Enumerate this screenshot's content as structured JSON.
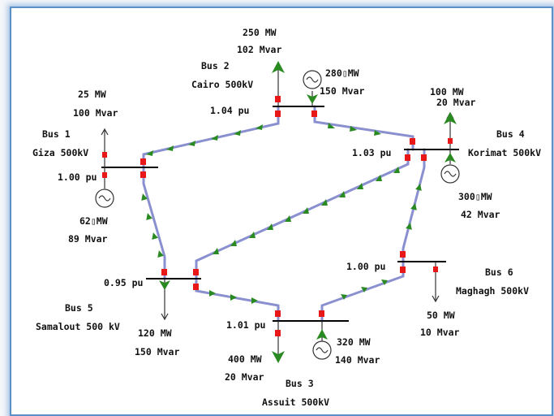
{
  "buses": [
    {
      "id": "bus1",
      "name": "Bus 1",
      "location": "Giza 500kV",
      "voltage": "1.00 pu"
    },
    {
      "id": "bus2",
      "name": "Bus 2",
      "location": "Cairo 500kV",
      "voltage": "1.04 pu"
    },
    {
      "id": "bus3",
      "name": "Bus 3",
      "location": "Assuit 500kV",
      "voltage": "1.01 pu"
    },
    {
      "id": "bus4",
      "name": "Bus 4",
      "location": "Korimat 500kV",
      "voltage": "1.03 pu"
    },
    {
      "id": "bus5",
      "name": "Bus 5",
      "location": "Samalout 500 kV",
      "voltage": "0.95 pu"
    },
    {
      "id": "bus6",
      "name": "Bus 6",
      "location": "Maghagh 500kV",
      "voltage": "1.00 pu"
    }
  ],
  "loads": [
    {
      "bus": "bus1",
      "mw": "25 MW",
      "mvar": "100 Mvar"
    },
    {
      "bus": "bus2",
      "mw": "250 MW",
      "mvar": "102 Mvar"
    },
    {
      "bus": "bus3",
      "mw": "400 MW",
      "mvar": "20 Mvar"
    },
    {
      "bus": "bus4",
      "mw": "100 MW",
      "mvar": "20 Mvar"
    },
    {
      "bus": "bus5",
      "mw": "120 MW",
      "mvar": "150 Mvar"
    },
    {
      "bus": "bus6",
      "mw": "50 MW",
      "mvar": "10 Mvar"
    }
  ],
  "generators": [
    {
      "bus": "bus1",
      "mw": "62▯MW",
      "mvar": "89 Mvar"
    },
    {
      "bus": "bus2",
      "mw": "280▯MW",
      "mvar": "150 Mvar"
    },
    {
      "bus": "bus3",
      "mw": "320 MW",
      "mvar": "140 Mvar"
    },
    {
      "bus": "bus4",
      "mw": "300▯MW",
      "mvar": "42 Mvar"
    }
  ],
  "lines": [
    {
      "from": "bus2",
      "to": "bus1"
    },
    {
      "from": "bus2",
      "to": "bus4"
    },
    {
      "from": "bus1",
      "to": "bus5"
    },
    {
      "from": "bus4",
      "to": "bus5"
    },
    {
      "from": "bus4",
      "to": "bus6"
    },
    {
      "from": "bus6",
      "to": "bus3"
    },
    {
      "from": "bus5",
      "to": "bus3"
    }
  ],
  "colors": {
    "line": "#8a8fcf",
    "line_dark": "#565b9c",
    "flow_arrow": "#2a8a22",
    "breaker": "#e81818",
    "frame": "#5b8fc7"
  }
}
